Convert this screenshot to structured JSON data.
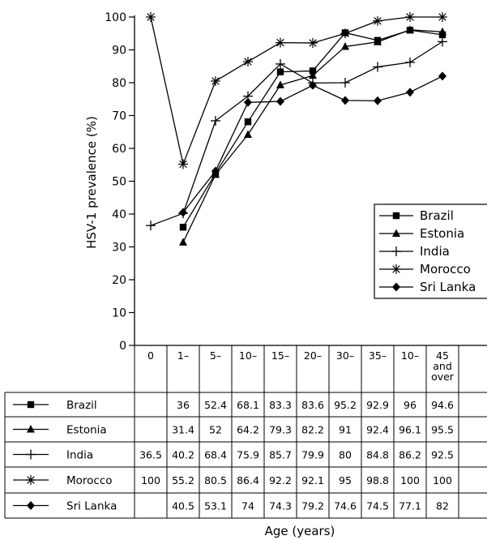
{
  "chart_data": {
    "type": "line",
    "ylabel": "HSV-1 prevalence (%)",
    "xlabel": "Age (years)",
    "ylim": [
      0,
      100
    ],
    "yticks": [
      0,
      10,
      20,
      30,
      40,
      50,
      60,
      70,
      80,
      90,
      100
    ],
    "categories": [
      "0",
      "1–",
      "5–",
      "10–",
      "15–",
      "20–",
      "30–",
      "35–",
      "10–",
      "45 and over"
    ],
    "category_lines": [
      [
        "0"
      ],
      [
        "1–"
      ],
      [
        "5–"
      ],
      [
        "10–"
      ],
      [
        "15–"
      ],
      [
        "20–"
      ],
      [
        "30–"
      ],
      [
        "35–"
      ],
      [
        "10–"
      ],
      [
        "45",
        "and",
        "over"
      ]
    ],
    "legend_position": "right",
    "grid": false,
    "series": [
      {
        "name": "Brazil",
        "marker": "square",
        "values": [
          null,
          36,
          52.4,
          68.1,
          83.3,
          83.6,
          95.2,
          92.9,
          96,
          94.6
        ]
      },
      {
        "name": "Estonia",
        "marker": "triangle",
        "values": [
          null,
          31.4,
          52,
          64.2,
          79.3,
          82.2,
          91,
          92.4,
          96.1,
          95.5
        ]
      },
      {
        "name": "India",
        "marker": "plus",
        "values": [
          36.5,
          40.2,
          68.4,
          75.9,
          85.7,
          79.9,
          80,
          84.8,
          86.2,
          92.5
        ]
      },
      {
        "name": "Morocco",
        "marker": "star",
        "values": [
          100,
          55.2,
          80.5,
          86.4,
          92.2,
          92.1,
          95,
          98.8,
          100,
          100
        ]
      },
      {
        "name": "Sri Lanka",
        "marker": "diamond",
        "values": [
          null,
          40.5,
          53.1,
          74,
          74.3,
          79.2,
          74.6,
          74.5,
          77.1,
          82
        ]
      }
    ]
  }
}
